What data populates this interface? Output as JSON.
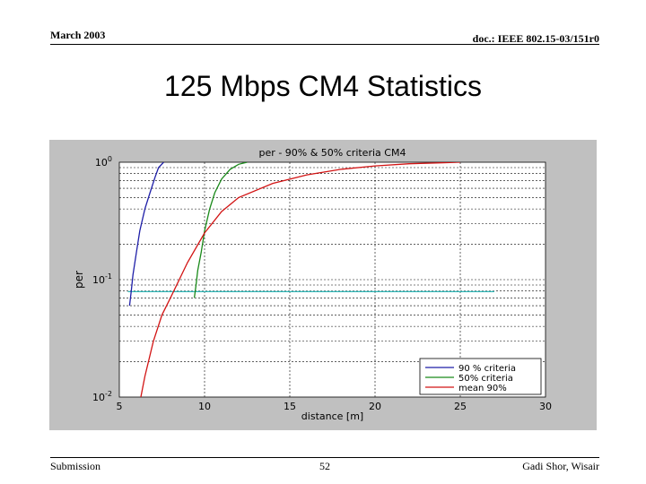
{
  "slide": {
    "date": "March 2003",
    "doc_id": "doc.: IEEE 802.15-03/151r0",
    "title": "125 Mbps CM4 Statistics",
    "footer_left": "Submission",
    "page_number": "52",
    "footer_right": "Gadi Shor, Wisair"
  },
  "colors": {
    "figure_background": "#c0c0c0",
    "plot_background": "#ffffff",
    "series_90": "#1f1fa8",
    "series_50": "#1a8a1a",
    "series_mean": "#d21414",
    "reference_line": "#2fb7b7"
  },
  "chart_data": {
    "type": "line",
    "title": "per - 90% & 50% criteria  CM4",
    "xlabel": "distance [m]",
    "ylabel": "per",
    "xlim": [
      5,
      30
    ],
    "ylim": [
      0.01,
      1
    ],
    "yscale": "log",
    "grid": true,
    "legend_position": "bottom-right",
    "x_ticks": [
      5,
      10,
      15,
      20,
      25,
      30
    ],
    "x_tick_labels": [
      "5",
      "10",
      "15",
      "20",
      "25",
      "30"
    ],
    "y_ticks": [
      0.01,
      0.1,
      1
    ],
    "y_tick_labels": [
      {
        "base": "10",
        "exp": "-2"
      },
      {
        "base": "10",
        "exp": "-1"
      },
      {
        "base": "10",
        "exp": "0"
      }
    ],
    "series": [
      {
        "name": "90 % criteria",
        "color": "#1f1fa8",
        "x": [
          5.6,
          5.7,
          5.8,
          6.0,
          6.2,
          6.5,
          6.8,
          7.1,
          7.3,
          7.6
        ],
        "y": [
          0.06,
          0.08,
          0.11,
          0.17,
          0.26,
          0.4,
          0.55,
          0.75,
          0.9,
          1.0
        ]
      },
      {
        "name": "50% criteria",
        "color": "#1a8a1a",
        "x": [
          9.4,
          9.5,
          9.6,
          9.8,
          10.0,
          10.3,
          10.6,
          11.0,
          11.5,
          12.0,
          12.5
        ],
        "y": [
          0.07,
          0.09,
          0.12,
          0.17,
          0.26,
          0.4,
          0.55,
          0.72,
          0.87,
          0.96,
          1.0
        ]
      },
      {
        "name": "mean 90%",
        "color": "#d21414",
        "x": [
          6.2,
          6.5,
          7.0,
          7.5,
          8.0,
          9.0,
          10.0,
          11.0,
          12.0,
          14.0,
          16.0,
          18.0,
          20.0,
          22.0,
          24.0,
          25.0
        ],
        "y": [
          0.009,
          0.015,
          0.03,
          0.05,
          0.07,
          0.14,
          0.25,
          0.38,
          0.5,
          0.66,
          0.78,
          0.87,
          0.93,
          0.97,
          0.99,
          1.0
        ]
      }
    ],
    "reference_line": {
      "y": 0.079,
      "x_start": 5.5,
      "x_end": 27.0,
      "color": "#2fb7b7"
    }
  }
}
